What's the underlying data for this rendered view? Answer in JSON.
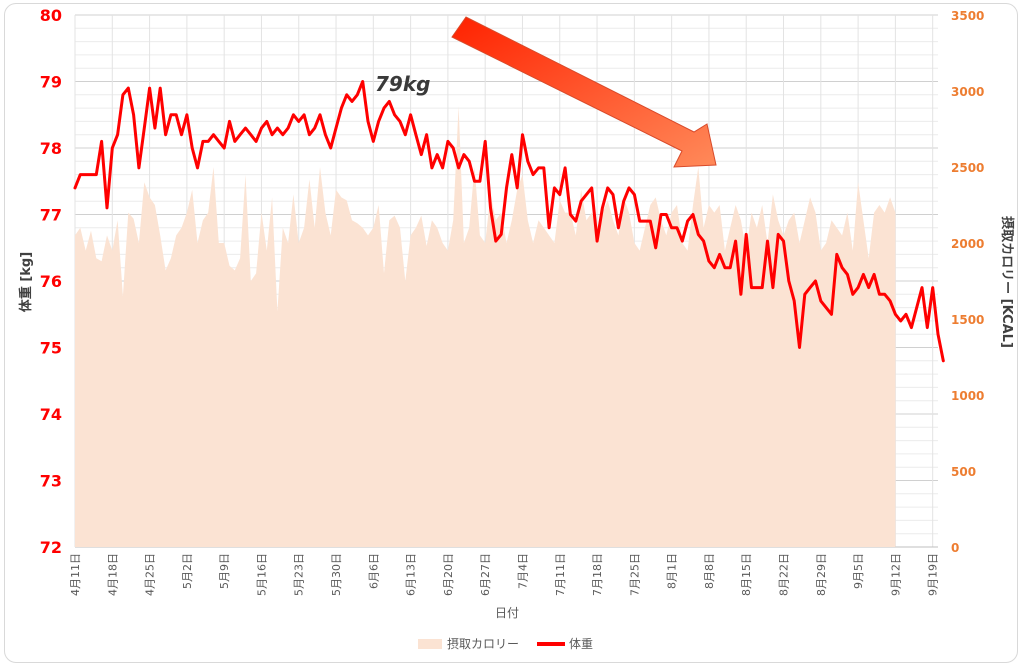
{
  "chart_data": {
    "type": "line",
    "xlabel": "日付",
    "ylabel_left": "体重 [kg]",
    "ylabel_right": "摂取カロリー [KCAL]",
    "y_left": {
      "min": 72,
      "max": 80,
      "ticks": [
        "72",
        "73",
        "74",
        "75",
        "76",
        "77",
        "78",
        "79",
        "80"
      ]
    },
    "y_right": {
      "min": 0,
      "max": 3500,
      "ticks": [
        "0",
        "500",
        "1000",
        "1500",
        "2000",
        "2500",
        "3000",
        "3500"
      ]
    },
    "x_ticks": [
      "4月11日",
      "4月18日",
      "4月25日",
      "5月2日",
      "5月9日",
      "5月16日",
      "5月23日",
      "5月30日",
      "6月6日",
      "6月13日",
      "6月20日",
      "6月27日",
      "7月4日",
      "7月11日",
      "7月18日",
      "7月25日",
      "8月1日",
      "8月8日",
      "8月15日",
      "8月22日",
      "8月29日",
      "9月5日",
      "9月12日",
      "9月19日"
    ],
    "annotation": "79kg",
    "legend_position": "bottom-center",
    "colors": {
      "weight": "#ff0000",
      "calorie": "#fbe3d3",
      "left_axis": "#ff0000",
      "right_axis": "#ed7d31",
      "arrow": "#ff3300"
    },
    "series": [
      {
        "name": "摂取カロリー",
        "type": "area",
        "start_day": 0,
        "values": [
          2050,
          2100,
          1950,
          2080,
          1900,
          1880,
          2050,
          1950,
          2150,
          1650,
          2200,
          2160,
          2000,
          2400,
          2300,
          2250,
          2050,
          1820,
          1900,
          2050,
          2100,
          2200,
          2350,
          2000,
          2150,
          2200,
          2500,
          2000,
          2000,
          1850,
          1820,
          1900,
          2450,
          1750,
          1800,
          2200,
          1950,
          2300,
          1550,
          2100,
          2000,
          2320,
          2000,
          2100,
          2420,
          2100,
          2500,
          2200,
          2050,
          2350,
          2300,
          2280,
          2150,
          2130,
          2100,
          2050,
          2100,
          2250,
          1800,
          2150,
          2180,
          2100,
          1750,
          2050,
          2100,
          2180,
          1980,
          2150,
          2100,
          2000,
          1950,
          2150,
          2900,
          2000,
          2100,
          2500,
          2050,
          2000,
          2320,
          2150,
          2200,
          2000,
          2150,
          2350,
          2450,
          2150,
          2000,
          2150,
          2100,
          2050,
          2000,
          2280,
          2200,
          2200,
          2050,
          2350,
          2150,
          2200,
          2100,
          2200,
          2280,
          2150,
          2050,
          2300,
          2200,
          2000,
          1950,
          2100,
          2250,
          2300,
          2150,
          2050,
          2200,
          2250,
          2000,
          1950,
          2250,
          2500,
          2100,
          2250,
          2200,
          2250,
          1950,
          2100,
          2250,
          2150,
          1950,
          2200,
          2100,
          2250,
          2000,
          2320,
          2150,
          2050,
          2150,
          2200,
          2000,
          2150,
          2300,
          2200,
          1950,
          2000,
          2150,
          2100,
          2050,
          2200,
          1950,
          2400,
          2150,
          1900,
          2200,
          2250,
          2200,
          2300,
          2200
        ]
      },
      {
        "name": "体重",
        "type": "line",
        "start_day": 0,
        "values": [
          77.4,
          77.6,
          77.6,
          77.6,
          77.6,
          78.1,
          77.1,
          78.0,
          78.2,
          78.8,
          78.9,
          78.5,
          77.7,
          78.3,
          78.9,
          78.3,
          78.9,
          78.2,
          78.5,
          78.5,
          78.2,
          78.5,
          78.0,
          77.7,
          78.1,
          78.1,
          78.2,
          78.1,
          78.0,
          78.4,
          78.1,
          78.2,
          78.3,
          78.2,
          78.1,
          78.3,
          78.4,
          78.2,
          78.3,
          78.2,
          78.3,
          78.5,
          78.4,
          78.5,
          78.2,
          78.3,
          78.5,
          78.2,
          78.0,
          78.3,
          78.6,
          78.8,
          78.7,
          78.8,
          79.0,
          78.4,
          78.1,
          78.4,
          78.6,
          78.7,
          78.5,
          78.4,
          78.2,
          78.5,
          78.2,
          77.9,
          78.2,
          77.7,
          77.9,
          77.7,
          78.1,
          78.0,
          77.7,
          77.9,
          77.8,
          77.5,
          77.5,
          78.1,
          77.1,
          76.6,
          76.7,
          77.4,
          77.9,
          77.4,
          78.2,
          77.8,
          77.6,
          77.7,
          77.7,
          76.8,
          77.4,
          77.3,
          77.7,
          77.0,
          76.9,
          77.2,
          77.3,
          77.4,
          76.6,
          77.1,
          77.4,
          77.3,
          76.8,
          77.2,
          77.4,
          77.3,
          76.9,
          76.9,
          76.9,
          76.5,
          77.0,
          77.0,
          76.8,
          76.8,
          76.6,
          76.9,
          77.0,
          76.7,
          76.6,
          76.3,
          76.2,
          76.4,
          76.2,
          76.2,
          76.6,
          75.8,
          76.7,
          75.9,
          75.9,
          75.9,
          76.6,
          75.9,
          76.7,
          76.6,
          76.0,
          75.7,
          75.0,
          75.8,
          75.9,
          76.0,
          75.7,
          75.6,
          75.5,
          76.4,
          76.2,
          76.1,
          75.8,
          75.9,
          76.1,
          75.9,
          76.1,
          75.8,
          75.8,
          75.7,
          75.5,
          75.4,
          75.5,
          75.3,
          75.6,
          75.9,
          75.3,
          75.9,
          75.2,
          74.8
        ]
      }
    ]
  }
}
